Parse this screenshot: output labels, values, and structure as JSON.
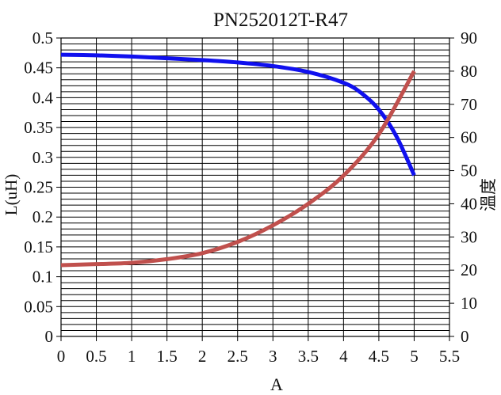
{
  "chart_data": {
    "type": "line",
    "title": "PN252012T-R47",
    "xlabel": "A",
    "ylabel_left": "L(uH)",
    "ylabel_right": "溫度",
    "x_ticks": [
      "0",
      "0.5",
      "1",
      "1.5",
      "2",
      "2.5",
      "3",
      "3.5",
      "4",
      "4.5",
      "5",
      "5.5"
    ],
    "y_left_ticks": [
      "0",
      "0.05",
      "0.1",
      "0.15",
      "0.2",
      "0.25",
      "0.3",
      "0.35",
      "0.4",
      "0.45",
      "0.5"
    ],
    "y_right_ticks": [
      "0",
      "10",
      "20",
      "30",
      "40",
      "50",
      "60",
      "70",
      "80",
      "90"
    ],
    "xlim": [
      0,
      5.5
    ],
    "ylim_left": [
      0,
      0.5
    ],
    "ylim_right": [
      0,
      90
    ],
    "grid": true,
    "series": [
      {
        "axis": "left",
        "color": "#1010ee",
        "x": [
          0,
          0.5,
          1,
          1.5,
          2,
          2.5,
          3,
          3.5,
          4,
          4.25,
          4.5,
          4.75,
          5
        ],
        "values": [
          0.472,
          0.471,
          0.469,
          0.466,
          0.463,
          0.459,
          0.453,
          0.443,
          0.425,
          0.408,
          0.38,
          0.335,
          0.27
        ]
      },
      {
        "axis": "right",
        "color": "#c0504d",
        "x": [
          0,
          0.5,
          1,
          1.5,
          2,
          2.5,
          3,
          3.5,
          4,
          4.5,
          5
        ],
        "values": [
          21.5,
          21.8,
          22.2,
          23.3,
          25.1,
          28.5,
          33.5,
          40.0,
          48.5,
          61.0,
          80.0
        ]
      }
    ]
  }
}
